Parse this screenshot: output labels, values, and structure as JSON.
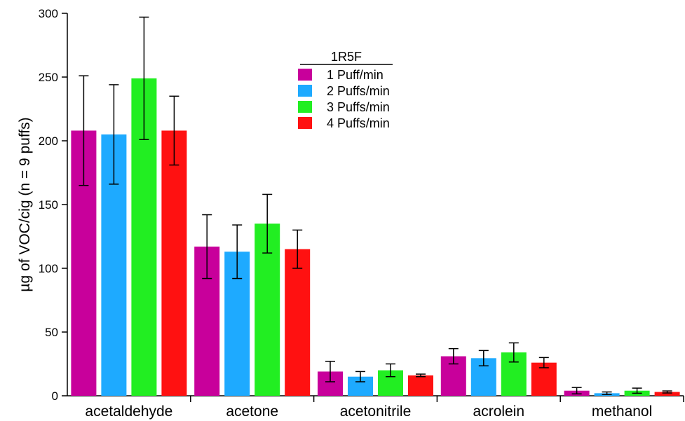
{
  "chart_data": {
    "type": "bar",
    "title": "",
    "xlabel": "",
    "ylabel": "µg of VOC/cig (n = 9 puffs)",
    "ylim": [
      0,
      300
    ],
    "yticks": [
      0,
      50,
      100,
      150,
      200,
      250,
      300
    ],
    "categories": [
      "acetaldehyde",
      "acetone",
      "acetonitrile",
      "acrolein",
      "methanol"
    ],
    "legend_title": "1R5F",
    "legend_position": "top-center",
    "grid": false,
    "series": [
      {
        "name": "1 Puff/min",
        "color": "#c8009b",
        "values": [
          208,
          117,
          19,
          31,
          4
        ],
        "errors": [
          43,
          25,
          8,
          6,
          2.5
        ]
      },
      {
        "name": "2 Puffs/min",
        "color": "#1eaaff",
        "values": [
          205,
          113,
          15,
          29.5,
          2
        ],
        "errors": [
          39,
          21,
          4,
          6,
          1
        ]
      },
      {
        "name": "3 Puffs/min",
        "color": "#22ee22",
        "values": [
          249,
          135,
          20,
          34,
          4
        ],
        "errors": [
          48,
          23,
          5,
          7.5,
          2
        ]
      },
      {
        "name": "4 Puffs/min",
        "color": "#ff1111",
        "values": [
          208,
          115,
          16,
          26,
          3
        ],
        "errors": [
          27,
          15,
          1,
          4,
          0.8
        ]
      }
    ]
  }
}
